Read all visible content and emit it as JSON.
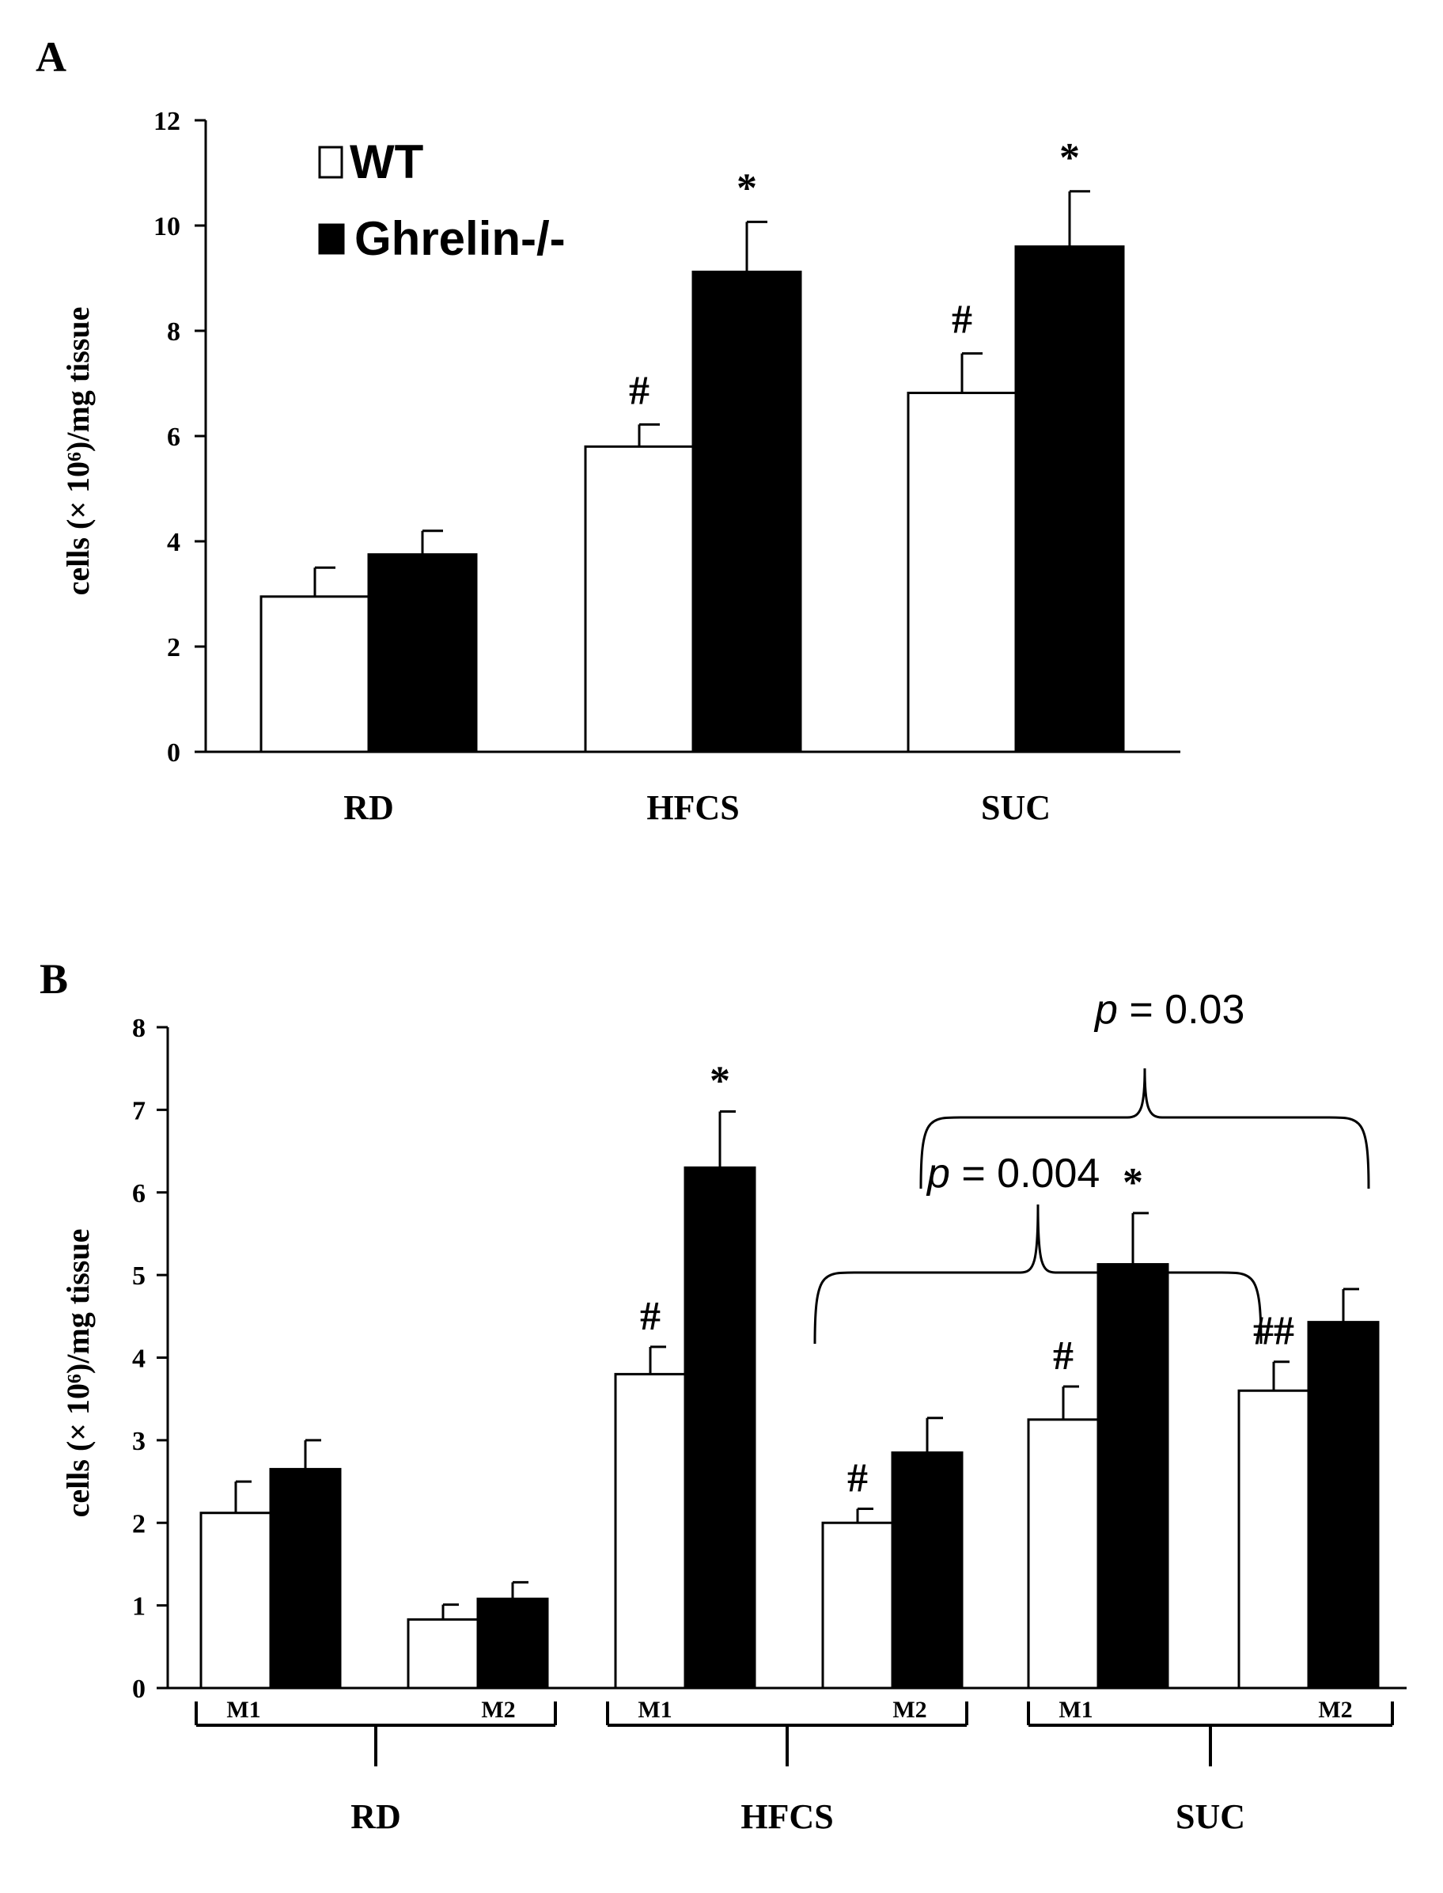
{
  "chart_data": [
    {
      "panel": "A",
      "type": "bar",
      "ylabel": "cells (× 10⁶)/mg tissue",
      "ylim": [
        0,
        12
      ],
      "yticks": [
        0,
        2,
        4,
        6,
        8,
        10,
        12
      ],
      "categories": [
        "RD",
        "HFCS",
        "SUC"
      ],
      "series": [
        {
          "name": "WT",
          "color": "#ffffff",
          "values": [
            2.95,
            5.8,
            6.82
          ],
          "errors": [
            0.55,
            0.42,
            0.75
          ]
        },
        {
          "name": "Ghrelin-/-",
          "color": "#000000",
          "values": [
            3.75,
            9.12,
            9.6
          ],
          "errors": [
            0.45,
            0.95,
            1.05
          ]
        }
      ],
      "annotations": [
        {
          "category": "HFCS",
          "series": "WT",
          "text": "#"
        },
        {
          "category": "HFCS",
          "series": "Ghrelin-/-",
          "text": "*"
        },
        {
          "category": "SUC",
          "series": "WT",
          "text": "#"
        },
        {
          "category": "SUC",
          "series": "Ghrelin-/-",
          "text": "*"
        }
      ],
      "legend": {
        "position": "top-left",
        "entries": [
          "WT",
          "Ghrelin-/-"
        ]
      }
    },
    {
      "panel": "B",
      "type": "bar",
      "ylabel": "cells (× 10⁶)/mg tissue",
      "ylim": [
        0,
        8
      ],
      "yticks": [
        0,
        1,
        2,
        3,
        4,
        5,
        6,
        7,
        8
      ],
      "groups": [
        "RD",
        "HFCS",
        "SUC"
      ],
      "subcategories": [
        "M1",
        "M2"
      ],
      "categories": [
        "RD M1",
        "RD M2",
        "HFCS M1",
        "HFCS M2",
        "SUC M1",
        "SUC M2"
      ],
      "series": [
        {
          "name": "WT",
          "color": "#ffffff",
          "values": [
            2.12,
            0.83,
            3.8,
            2.0,
            3.25,
            3.6
          ],
          "errors": [
            0.38,
            0.18,
            0.33,
            0.17,
            0.4,
            0.35
          ]
        },
        {
          "name": "Ghrelin-/-",
          "color": "#000000",
          "values": [
            2.65,
            1.08,
            6.3,
            2.85,
            5.13,
            4.43
          ],
          "errors": [
            0.35,
            0.2,
            0.68,
            0.42,
            0.62,
            0.4
          ]
        }
      ],
      "annotations": [
        {
          "category": "HFCS M1",
          "series": "WT",
          "text": "#"
        },
        {
          "category": "HFCS M1",
          "series": "Ghrelin-/-",
          "text": "*"
        },
        {
          "category": "HFCS M2",
          "series": "WT",
          "text": "#"
        },
        {
          "category": "SUC M1",
          "series": "WT",
          "text": "#"
        },
        {
          "category": "SUC M1",
          "series": "Ghrelin-/-",
          "text": "*"
        },
        {
          "category": "SUC M2",
          "series": "WT",
          "text": "##"
        }
      ],
      "brackets": [
        {
          "label_p": "p",
          "label_rest": " = 0.004"
        },
        {
          "label_p": "p",
          "label_rest": " = 0.03"
        }
      ]
    }
  ]
}
